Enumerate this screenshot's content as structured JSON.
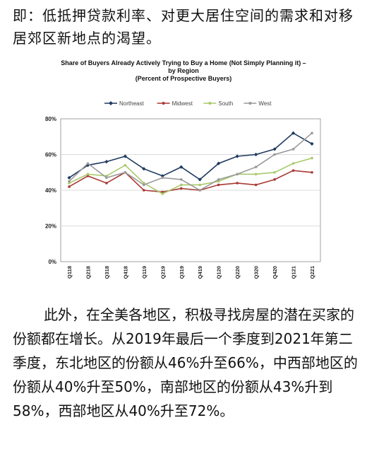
{
  "top_paragraph": "即：低抵押贷款利率、对更大居住空间的需求和对移居郊区新地点的渴望。",
  "chart_data": {
    "type": "line",
    "title": "Share of Buyers Already Actively Trying to Buy a Home (Not Simply Planning it) –",
    "subtitle": "by Region",
    "subtitle2": "(Percent of Prospective Buyers)",
    "xlabel": "",
    "ylabel": "",
    "ylim": [
      0,
      80
    ],
    "yticks": [
      "0%",
      "20%",
      "40%",
      "60%",
      "80%"
    ],
    "legend_position": "top",
    "categories": [
      "Q118",
      "Q218",
      "Q318",
      "Q418",
      "Q119",
      "Q219",
      "Q319",
      "Q419",
      "Q120",
      "Q220",
      "Q320",
      "Q420",
      "Q121",
      "Q221"
    ],
    "series": [
      {
        "name": "Northeast",
        "color": "#1f3a5f",
        "marker": "diamond",
        "values": [
          47,
          54,
          56,
          59,
          52,
          48,
          53,
          46,
          55,
          59,
          60,
          63,
          72,
          66
        ]
      },
      {
        "name": "Midwest",
        "color": "#a83a35",
        "marker": "dot",
        "values": [
          42,
          48,
          44,
          50,
          40,
          39,
          41,
          40,
          43,
          44,
          43,
          46,
          51,
          50
        ]
      },
      {
        "name": "South",
        "color": "#a9c96a",
        "marker": "dot",
        "values": [
          44,
          49,
          48,
          54,
          44,
          38,
          43,
          43,
          45,
          49,
          49,
          50,
          55,
          58
        ]
      },
      {
        "name": "West",
        "color": "#9a9a9a",
        "marker": "dot",
        "values": [
          45,
          55,
          47,
          50,
          43,
          47,
          46,
          40,
          46,
          49,
          53,
          60,
          63,
          72
        ]
      }
    ]
  },
  "bottom_paragraph": "此外，在全美各地区，积极寻找房屋的潜在买家的份额都在增长。从2019年最后一个季度到2021年第二季度，东北地区的份额从46%升至66%，中西部地区的份额从40%升至50%，南部地区的份额从43%升到58%，西部地区从40%升至72%。"
}
